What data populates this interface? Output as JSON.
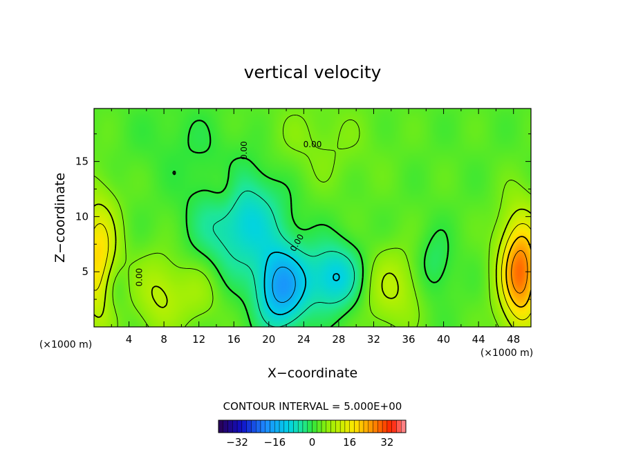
{
  "chart_data": {
    "type": "heatmap",
    "title": "vertical velocity",
    "xlabel": "X−coordinate",
    "ylabel": "Z−coordinate",
    "x_unit": "(×1000 m)",
    "y_unit": "(×1000 m)",
    "xlim": [
      0,
      50
    ],
    "ylim": [
      0,
      19.8
    ],
    "x_ticks": [
      4,
      8,
      12,
      16,
      20,
      24,
      28,
      32,
      36,
      40,
      44,
      48
    ],
    "y_ticks": [
      5,
      10,
      15
    ],
    "x_tick_labels": [
      "4",
      "8",
      "12",
      "16",
      "20",
      "24",
      "28",
      "32",
      "36",
      "40",
      "44",
      "48"
    ],
    "y_tick_labels": [
      "5",
      "10",
      "15"
    ],
    "contour_interval_text": "CONTOUR INTERVAL = 5.000E+00",
    "contour_interval": 5.0,
    "zero_contour_label": "0.00",
    "colorbar": {
      "range": [
        -40,
        40
      ],
      "ticks": [
        -32,
        -16,
        0,
        16,
        32
      ],
      "tick_labels": [
        "−32",
        "−16",
        "0",
        "16",
        "32"
      ]
    },
    "features": [
      {
        "kind": "downdraft",
        "x": 21.5,
        "z": 3.5,
        "value": -19
      },
      {
        "kind": "downdraft",
        "x": 27.5,
        "z": 4.5,
        "value": -13
      },
      {
        "kind": "downdraft",
        "x": 16.8,
        "z": 9.8,
        "value": -12
      },
      {
        "kind": "updraft",
        "x": 48.8,
        "z": 5.0,
        "value": 26
      },
      {
        "kind": "updraft",
        "x": 0.5,
        "z": 6.0,
        "value": 17
      },
      {
        "kind": "updraft",
        "x": 7.5,
        "z": 3.0,
        "value": 8
      },
      {
        "kind": "updraft",
        "x": 34.0,
        "z": 3.5,
        "value": 8
      },
      {
        "kind": "updraft",
        "x": 12.0,
        "z": 3.0,
        "value": 5
      },
      {
        "kind": "updraft",
        "x": 15.0,
        "z": 12.5,
        "value": 6
      },
      {
        "kind": "downdraft",
        "x": 39.0,
        "z": 5.5,
        "value": -5
      },
      {
        "kind": "downdraft",
        "x": 2.2,
        "z": 3.5,
        "value": -5
      },
      {
        "kind": "updraft",
        "x": 25.0,
        "z": 16.5,
        "value": 3
      },
      {
        "kind": "downdraft",
        "x": 10.0,
        "z": 17.0,
        "value": -2
      }
    ],
    "grid": false,
    "legend": "bottom"
  }
}
